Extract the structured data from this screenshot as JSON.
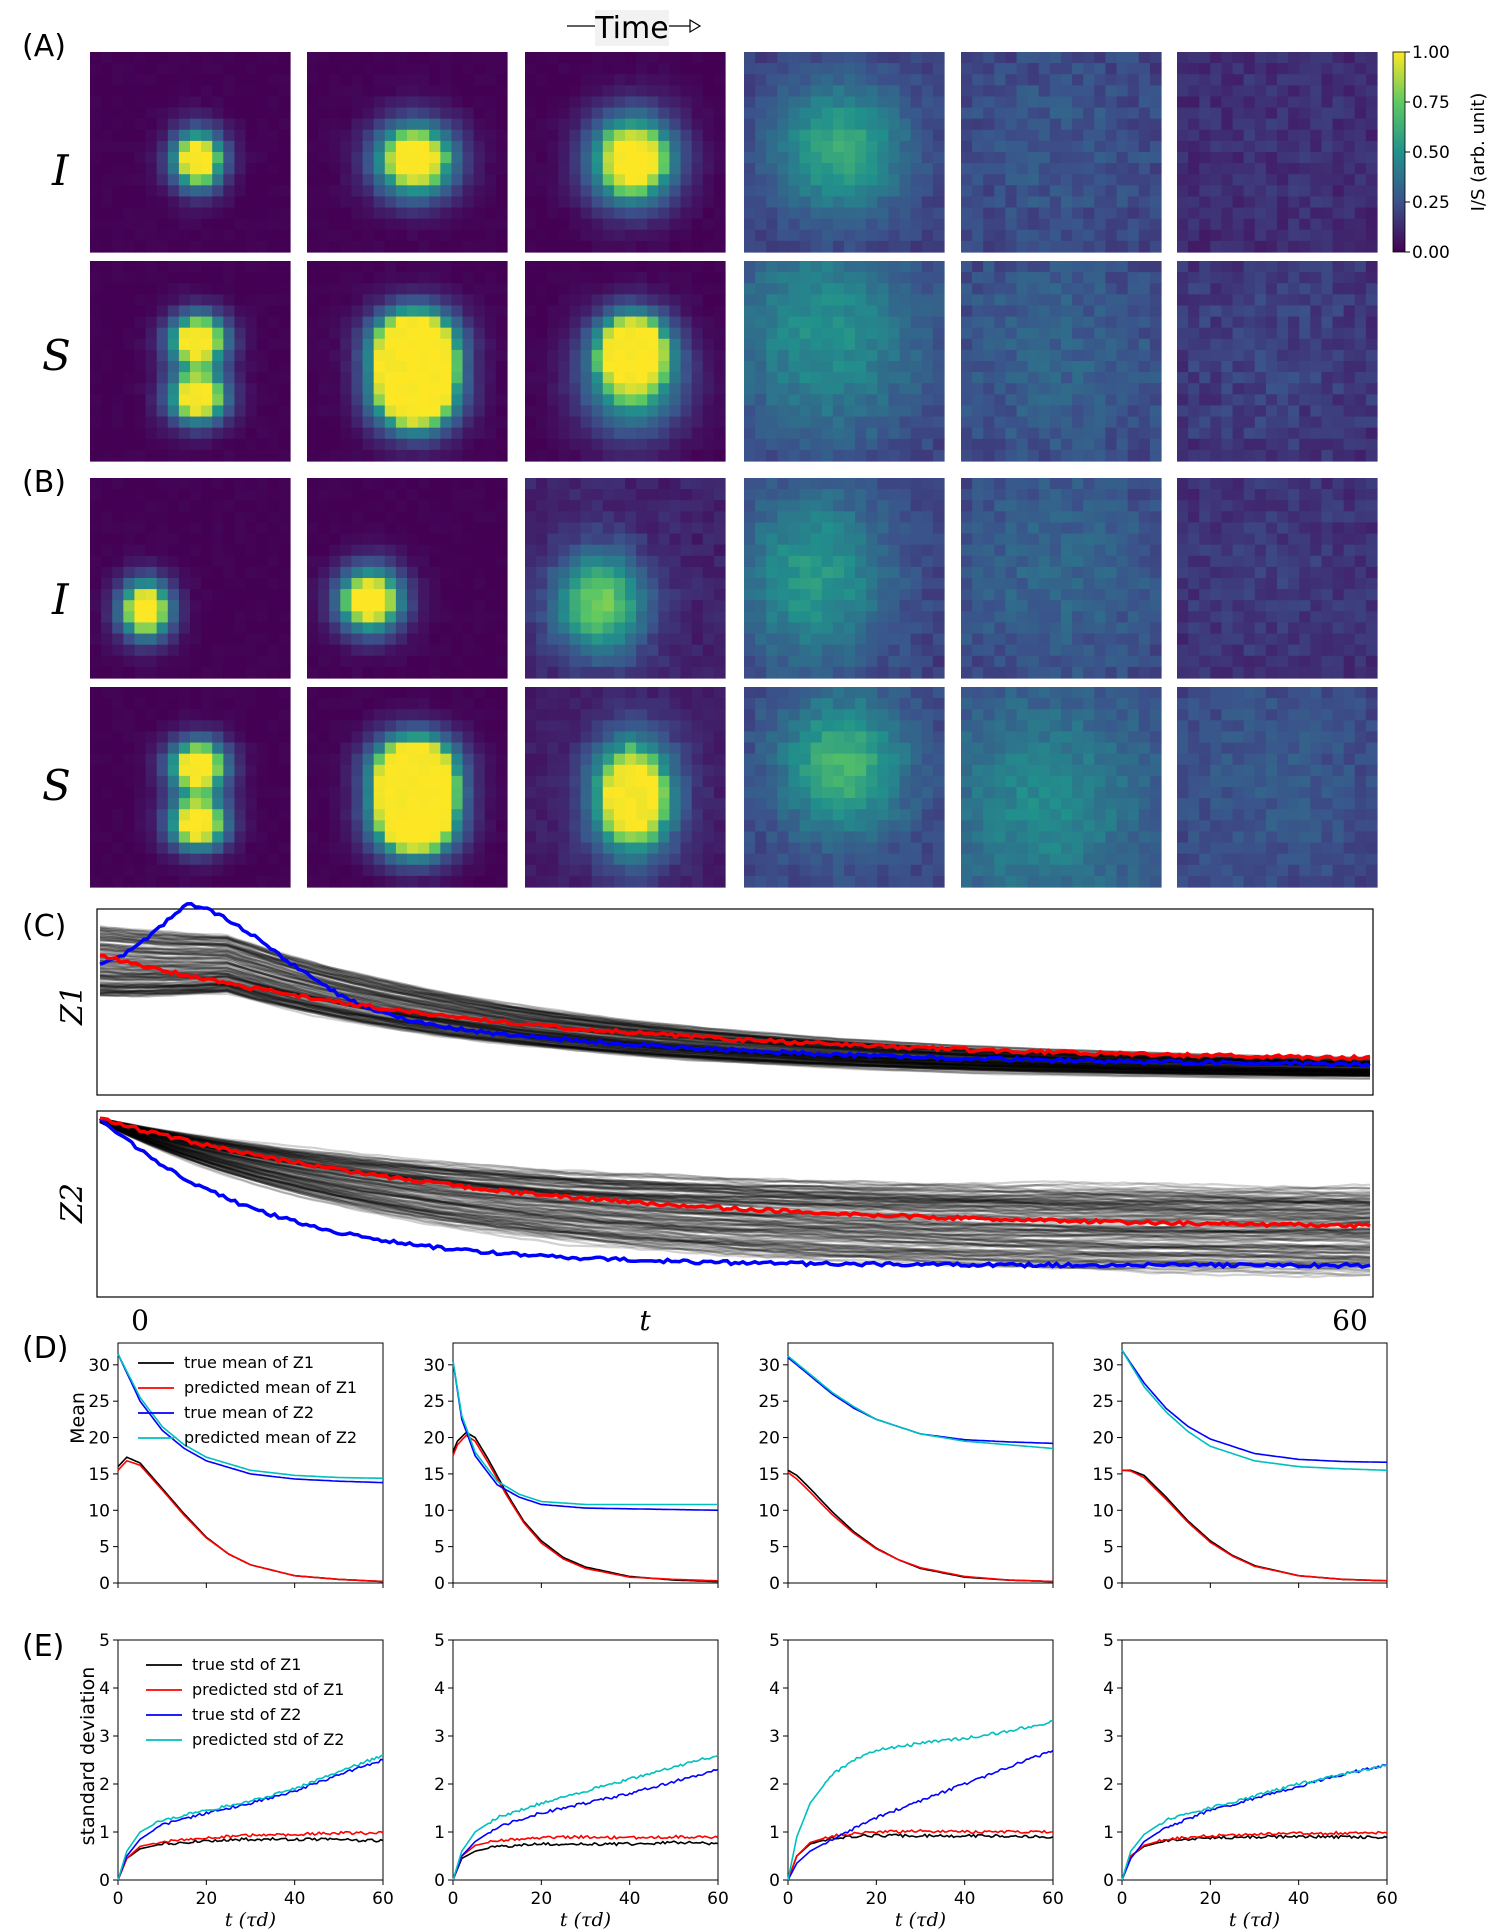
{
  "header": {
    "time_label": "Time"
  },
  "panel_labels": {
    "A": "(A)",
    "B": "(B)",
    "C": "(C)",
    "D": "(D)",
    "E": "(E)"
  },
  "heatmaps": {
    "row_labels": [
      "I",
      "S",
      "I",
      "S"
    ],
    "colorbar": {
      "label": "I/S (arb. unit)",
      "ticks": [
        "1.00",
        "0.75",
        "0.50",
        "0.25",
        "0.00"
      ],
      "colormap": [
        "#440154",
        "#3b528b",
        "#21918c",
        "#5ec962",
        "#fde725"
      ]
    }
  },
  "trajectories": {
    "ylabels": [
      "Z1",
      "Z2"
    ],
    "x_ticks": [
      "0",
      "t",
      "60"
    ],
    "colors": {
      "true": "#0000ff",
      "predicted": "#ff0000",
      "samples": "#000000"
    }
  },
  "mean_panels": {
    "ylabel": "Mean",
    "yticks": [
      "0",
      "5",
      "10",
      "15",
      "20",
      "25",
      "30"
    ],
    "legend": [
      "true mean of Z1",
      "predicted mean of Z1",
      "true mean of Z2",
      "predicted mean of Z2"
    ]
  },
  "std_panels": {
    "ylabel": "standard deviation",
    "yticks": [
      "0",
      "1",
      "2",
      "3",
      "4",
      "5"
    ],
    "xticks": [
      "0",
      "20",
      "40",
      "60"
    ],
    "xlabel": "t (τd)",
    "legend": [
      "true std of Z1",
      "predicted std of Z1",
      "true std of Z2",
      "predicted std of Z2"
    ]
  },
  "chart_data": [
    {
      "type": "line",
      "panel": "D1",
      "ylabel": "Mean",
      "ylim": [
        0,
        33
      ],
      "xlim": [
        0,
        60
      ],
      "series": [
        {
          "name": "true mean of Z1",
          "color": "#000000",
          "x": [
            0,
            2,
            5,
            10,
            15,
            20,
            25,
            30,
            40,
            50,
            60
          ],
          "values": [
            16.0,
            17.3,
            16.5,
            13.0,
            9.5,
            6.3,
            4.0,
            2.5,
            1.0,
            0.5,
            0.2
          ]
        },
        {
          "name": "predicted mean of Z1",
          "color": "#ff0000",
          "x": [
            0,
            2,
            5,
            10,
            15,
            20,
            25,
            30,
            40,
            50,
            60
          ],
          "values": [
            15.5,
            16.8,
            16.2,
            12.8,
            9.3,
            6.2,
            4.0,
            2.5,
            1.0,
            0.5,
            0.2
          ]
        },
        {
          "name": "true mean of Z2",
          "color": "#0000ff",
          "x": [
            0,
            5,
            10,
            15,
            20,
            30,
            40,
            50,
            60
          ],
          "values": [
            31.5,
            25.0,
            21.0,
            18.5,
            16.8,
            15.0,
            14.3,
            14.0,
            13.8
          ]
        },
        {
          "name": "predicted mean of Z2",
          "color": "#00bfbf",
          "x": [
            0,
            5,
            10,
            15,
            20,
            30,
            40,
            50,
            60
          ],
          "values": [
            31.5,
            25.5,
            21.5,
            19.0,
            17.3,
            15.5,
            14.8,
            14.5,
            14.4
          ]
        }
      ]
    },
    {
      "type": "line",
      "panel": "D2",
      "ylim": [
        0,
        33
      ],
      "xlim": [
        0,
        60
      ],
      "series": [
        {
          "name": "true mean of Z1",
          "color": "#000000",
          "x": [
            0,
            1,
            3,
            5,
            8,
            12,
            16,
            20,
            25,
            30,
            40,
            50,
            60
          ],
          "values": [
            18.0,
            19.5,
            20.7,
            20.0,
            17.0,
            12.5,
            8.5,
            5.8,
            3.5,
            2.2,
            0.9,
            0.4,
            0.2
          ]
        },
        {
          "name": "predicted mean of Z1",
          "color": "#ff0000",
          "x": [
            0,
            1,
            3,
            5,
            8,
            12,
            16,
            20,
            25,
            30,
            40,
            50,
            60
          ],
          "values": [
            17.5,
            19.0,
            20.3,
            19.5,
            16.5,
            12.2,
            8.3,
            5.5,
            3.3,
            2.0,
            0.8,
            0.5,
            0.3
          ]
        },
        {
          "name": "true mean of Z2",
          "color": "#0000ff",
          "x": [
            0,
            2,
            5,
            10,
            15,
            20,
            30,
            40,
            50,
            60
          ],
          "values": [
            30.5,
            22.5,
            17.5,
            13.5,
            11.8,
            10.8,
            10.3,
            10.2,
            10.1,
            10.0
          ]
        },
        {
          "name": "predicted mean of Z2",
          "color": "#00bfbf",
          "x": [
            0,
            2,
            5,
            10,
            15,
            20,
            30,
            40,
            50,
            60
          ],
          "values": [
            30.5,
            23.0,
            18.0,
            14.0,
            12.2,
            11.2,
            10.8,
            10.8,
            10.8,
            10.8
          ]
        }
      ]
    },
    {
      "type": "line",
      "panel": "D3",
      "ylim": [
        0,
        33
      ],
      "xlim": [
        0,
        60
      ],
      "series": [
        {
          "name": "true mean of Z1",
          "color": "#000000",
          "x": [
            0,
            2,
            5,
            10,
            15,
            20,
            25,
            30,
            40,
            50,
            60
          ],
          "values": [
            15.5,
            14.8,
            13.0,
            9.8,
            7.0,
            4.8,
            3.2,
            2.0,
            0.8,
            0.4,
            0.2
          ]
        },
        {
          "name": "predicted mean of Z1",
          "color": "#ff0000",
          "x": [
            0,
            2,
            5,
            10,
            15,
            20,
            25,
            30,
            40,
            50,
            60
          ],
          "values": [
            15.2,
            14.3,
            12.5,
            9.4,
            6.8,
            4.7,
            3.2,
            2.1,
            0.9,
            0.4,
            0.2
          ]
        },
        {
          "name": "true mean of Z2",
          "color": "#0000ff",
          "x": [
            0,
            5,
            10,
            15,
            20,
            30,
            40,
            50,
            60
          ],
          "values": [
            31.0,
            28.5,
            26.0,
            24.0,
            22.5,
            20.5,
            19.7,
            19.4,
            19.2
          ]
        },
        {
          "name": "predicted mean of Z2",
          "color": "#00bfbf",
          "x": [
            0,
            5,
            10,
            15,
            20,
            30,
            40,
            50,
            60
          ],
          "values": [
            31.2,
            28.7,
            26.2,
            24.2,
            22.5,
            20.5,
            19.5,
            19.0,
            18.5
          ]
        }
      ]
    },
    {
      "type": "line",
      "panel": "D4",
      "ylim": [
        0,
        33
      ],
      "xlim": [
        0,
        60
      ],
      "series": [
        {
          "name": "true mean of Z1",
          "color": "#000000",
          "x": [
            0,
            2,
            5,
            10,
            15,
            20,
            25,
            30,
            40,
            50,
            60
          ],
          "values": [
            15.5,
            15.5,
            14.8,
            11.8,
            8.5,
            5.8,
            3.8,
            2.4,
            1.0,
            0.5,
            0.3
          ]
        },
        {
          "name": "predicted mean of Z1",
          "color": "#ff0000",
          "x": [
            0,
            2,
            5,
            10,
            15,
            20,
            25,
            30,
            40,
            50,
            60
          ],
          "values": [
            15.5,
            15.4,
            14.5,
            11.5,
            8.3,
            5.6,
            3.7,
            2.3,
            1.0,
            0.5,
            0.3
          ]
        },
        {
          "name": "true mean of Z2",
          "color": "#0000ff",
          "x": [
            0,
            5,
            10,
            15,
            20,
            30,
            40,
            50,
            60
          ],
          "values": [
            32.0,
            27.5,
            24.0,
            21.5,
            19.8,
            17.8,
            17.0,
            16.7,
            16.6
          ]
        },
        {
          "name": "predicted mean of Z2",
          "color": "#00bfbf",
          "x": [
            0,
            5,
            10,
            15,
            20,
            30,
            40,
            50,
            60
          ],
          "values": [
            32.0,
            27.0,
            23.5,
            20.8,
            18.8,
            16.8,
            16.0,
            15.7,
            15.5
          ]
        }
      ]
    },
    {
      "type": "line",
      "panel": "E1",
      "ylabel": "standard deviation",
      "xlabel": "t (τd)",
      "ylim": [
        0,
        5
      ],
      "xlim": [
        0,
        60
      ],
      "series": [
        {
          "name": "true std of Z1",
          "color": "#000000",
          "x": [
            0,
            2,
            5,
            10,
            20,
            30,
            40,
            50,
            60
          ],
          "values": [
            0.0,
            0.45,
            0.65,
            0.75,
            0.82,
            0.85,
            0.85,
            0.84,
            0.82
          ]
        },
        {
          "name": "predicted std of Z1",
          "color": "#ff0000",
          "x": [
            0,
            2,
            5,
            10,
            20,
            30,
            40,
            50,
            60
          ],
          "values": [
            0.0,
            0.45,
            0.7,
            0.8,
            0.88,
            0.93,
            0.95,
            0.98,
            0.98
          ]
        },
        {
          "name": "true std of Z2",
          "color": "#0000ff",
          "x": [
            0,
            2,
            5,
            10,
            20,
            30,
            40,
            50,
            60
          ],
          "values": [
            0.0,
            0.5,
            0.85,
            1.15,
            1.4,
            1.6,
            1.85,
            2.2,
            2.5
          ]
        },
        {
          "name": "predicted std of Z2",
          "color": "#00bfbf",
          "x": [
            0,
            2,
            5,
            10,
            20,
            30,
            40,
            50,
            60
          ],
          "values": [
            0.0,
            0.6,
            1.0,
            1.25,
            1.45,
            1.65,
            1.9,
            2.25,
            2.6
          ]
        }
      ]
    },
    {
      "type": "line",
      "panel": "E2",
      "ylim": [
        0,
        5
      ],
      "xlim": [
        0,
        60
      ],
      "series": [
        {
          "name": "true std of Z1",
          "color": "#000000",
          "x": [
            0,
            2,
            5,
            10,
            20,
            30,
            40,
            50,
            60
          ],
          "values": [
            0.0,
            0.45,
            0.6,
            0.7,
            0.75,
            0.75,
            0.75,
            0.78,
            0.76
          ]
        },
        {
          "name": "predicted std of Z1",
          "color": "#ff0000",
          "x": [
            0,
            2,
            5,
            10,
            20,
            30,
            40,
            50,
            60
          ],
          "values": [
            0.0,
            0.5,
            0.72,
            0.82,
            0.88,
            0.9,
            0.88,
            0.9,
            0.88
          ]
        },
        {
          "name": "true std of Z2",
          "color": "#0000ff",
          "x": [
            0,
            2,
            5,
            10,
            20,
            30,
            40,
            50,
            60
          ],
          "values": [
            0.0,
            0.5,
            0.8,
            1.1,
            1.4,
            1.6,
            1.8,
            2.05,
            2.3
          ]
        },
        {
          "name": "predicted std of Z2",
          "color": "#00bfbf",
          "x": [
            0,
            2,
            5,
            10,
            20,
            30,
            40,
            50,
            60
          ],
          "values": [
            0.0,
            0.6,
            1.0,
            1.3,
            1.6,
            1.85,
            2.1,
            2.35,
            2.6
          ]
        }
      ]
    },
    {
      "type": "line",
      "panel": "E3",
      "ylim": [
        0,
        5
      ],
      "xlim": [
        0,
        60
      ],
      "series": [
        {
          "name": "true std of Z1",
          "color": "#000000",
          "x": [
            0,
            2,
            5,
            10,
            20,
            30,
            40,
            50,
            60
          ],
          "values": [
            0.0,
            0.5,
            0.75,
            0.88,
            0.93,
            0.92,
            0.92,
            0.92,
            0.9
          ]
        },
        {
          "name": "predicted std of Z1",
          "color": "#ff0000",
          "x": [
            0,
            2,
            5,
            10,
            20,
            30,
            40,
            50,
            60
          ],
          "values": [
            0.0,
            0.5,
            0.78,
            0.92,
            1.0,
            1.02,
            1.0,
            1.0,
            1.0
          ]
        },
        {
          "name": "true std of Z2",
          "color": "#0000ff",
          "x": [
            0,
            2,
            5,
            10,
            20,
            30,
            40,
            50,
            60
          ],
          "values": [
            0.0,
            0.35,
            0.6,
            0.85,
            1.3,
            1.65,
            2.0,
            2.35,
            2.7
          ]
        },
        {
          "name": "predicted std of Z2",
          "color": "#00bfbf",
          "x": [
            0,
            2,
            5,
            10,
            15,
            20,
            30,
            40,
            50,
            60
          ],
          "values": [
            0.0,
            0.9,
            1.6,
            2.2,
            2.5,
            2.7,
            2.85,
            2.95,
            3.1,
            3.3
          ]
        }
      ]
    },
    {
      "type": "line",
      "panel": "E4",
      "ylim": [
        0,
        5
      ],
      "xlim": [
        0,
        60
      ],
      "series": [
        {
          "name": "true std of Z1",
          "color": "#000000",
          "x": [
            0,
            2,
            5,
            10,
            20,
            30,
            40,
            50,
            60
          ],
          "values": [
            0.0,
            0.5,
            0.7,
            0.82,
            0.88,
            0.9,
            0.9,
            0.9,
            0.88
          ]
        },
        {
          "name": "predicted std of Z1",
          "color": "#ff0000",
          "x": [
            0,
            2,
            5,
            10,
            20,
            30,
            40,
            50,
            60
          ],
          "values": [
            0.0,
            0.5,
            0.72,
            0.85,
            0.92,
            0.95,
            0.97,
            0.98,
            0.98
          ]
        },
        {
          "name": "true std of Z2",
          "color": "#0000ff",
          "x": [
            0,
            2,
            5,
            10,
            20,
            30,
            40,
            50,
            60
          ],
          "values": [
            0.0,
            0.45,
            0.8,
            1.1,
            1.45,
            1.7,
            1.95,
            2.2,
            2.4
          ]
        },
        {
          "name": "predicted std of Z2",
          "color": "#00bfbf",
          "x": [
            0,
            2,
            5,
            10,
            20,
            30,
            40,
            50,
            60
          ],
          "values": [
            0.0,
            0.6,
            0.95,
            1.25,
            1.5,
            1.75,
            2.0,
            2.2,
            2.4
          ]
        }
      ]
    }
  ]
}
